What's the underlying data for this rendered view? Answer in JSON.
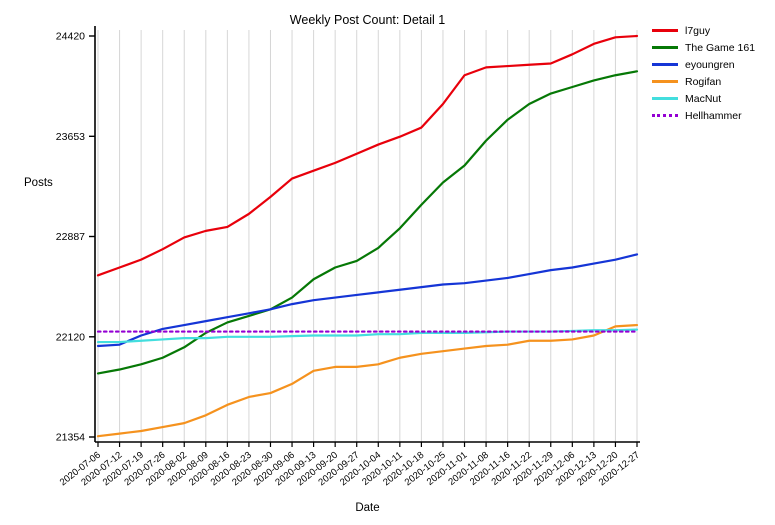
{
  "chart_data": {
    "type": "line",
    "title": "Weekly Post Count: Detail 1",
    "xlabel": "Date",
    "ylabel": "Posts",
    "ylim": [
      21354,
      24420
    ],
    "yticks": [
      21354,
      22120,
      22887,
      23653,
      24420
    ],
    "grid": "vertical-only",
    "legend_position": "top-right-outside",
    "categories": [
      "2020-07-06",
      "2020-07-12",
      "2020-07-19",
      "2020-07-26",
      "2020-08-02",
      "2020-08-09",
      "2020-08-16",
      "2020-08-23",
      "2020-08-30",
      "2020-09-06",
      "2020-09-13",
      "2020-09-20",
      "2020-09-27",
      "2020-10-04",
      "2020-10-11",
      "2020-10-18",
      "2020-10-25",
      "2020-11-01",
      "2020-11-08",
      "2020-11-16",
      "2020-11-22",
      "2020-11-29",
      "2020-12-06",
      "2020-12-13",
      "2020-12-20",
      "2020-12-27"
    ],
    "series": [
      {
        "name": "l7guy",
        "color": "#e8000b",
        "style": "solid",
        "values": [
          22590,
          22650,
          22710,
          22790,
          22880,
          22930,
          22960,
          23060,
          23190,
          23330,
          23390,
          23450,
          23520,
          23590,
          23650,
          23720,
          23900,
          24120,
          24180,
          24190,
          24200,
          24210,
          24280,
          24360,
          24410,
          24420
        ]
      },
      {
        "name": "The Game 161",
        "color": "#067806",
        "style": "solid",
        "values": [
          21840,
          21870,
          21910,
          21960,
          22040,
          22150,
          22230,
          22280,
          22330,
          22420,
          22560,
          22650,
          22700,
          22800,
          22950,
          23130,
          23300,
          23430,
          23620,
          23780,
          23900,
          23980,
          24030,
          24080,
          24120,
          24150
        ]
      },
      {
        "name": "eyoungren",
        "color": "#1535d6",
        "style": "solid",
        "values": [
          22050,
          22060,
          22130,
          22180,
          22210,
          22240,
          22270,
          22300,
          22330,
          22370,
          22400,
          22420,
          22440,
          22460,
          22480,
          22500,
          22520,
          22530,
          22550,
          22570,
          22600,
          22630,
          22650,
          22680,
          22710,
          22750
        ]
      },
      {
        "name": "Rogifan",
        "color": "#f5921e",
        "style": "solid",
        "values": [
          21360,
          21380,
          21400,
          21430,
          21460,
          21520,
          21600,
          21660,
          21690,
          21760,
          21860,
          21890,
          21890,
          21910,
          21960,
          21990,
          22010,
          22030,
          22050,
          22060,
          22090,
          22090,
          22100,
          22130,
          22200,
          22210
        ]
      },
      {
        "name": "MacNut",
        "color": "#43dede",
        "style": "solid",
        "values": [
          22080,
          22080,
          22090,
          22100,
          22110,
          22110,
          22120,
          22120,
          22120,
          22125,
          22130,
          22130,
          22130,
          22140,
          22140,
          22150,
          22150,
          22150,
          22155,
          22160,
          22160,
          22160,
          22165,
          22170,
          22170,
          22175
        ]
      },
      {
        "name": "Hellhammer",
        "color": "#9400d3",
        "style": "dotted",
        "values": [
          22160,
          22160,
          22160,
          22160,
          22160,
          22160,
          22160,
          22160,
          22160,
          22160,
          22160,
          22160,
          22160,
          22160,
          22160,
          22160,
          22160,
          22160,
          22160,
          22160,
          22160,
          22160,
          22160,
          22160,
          22160,
          22160
        ]
      }
    ]
  }
}
